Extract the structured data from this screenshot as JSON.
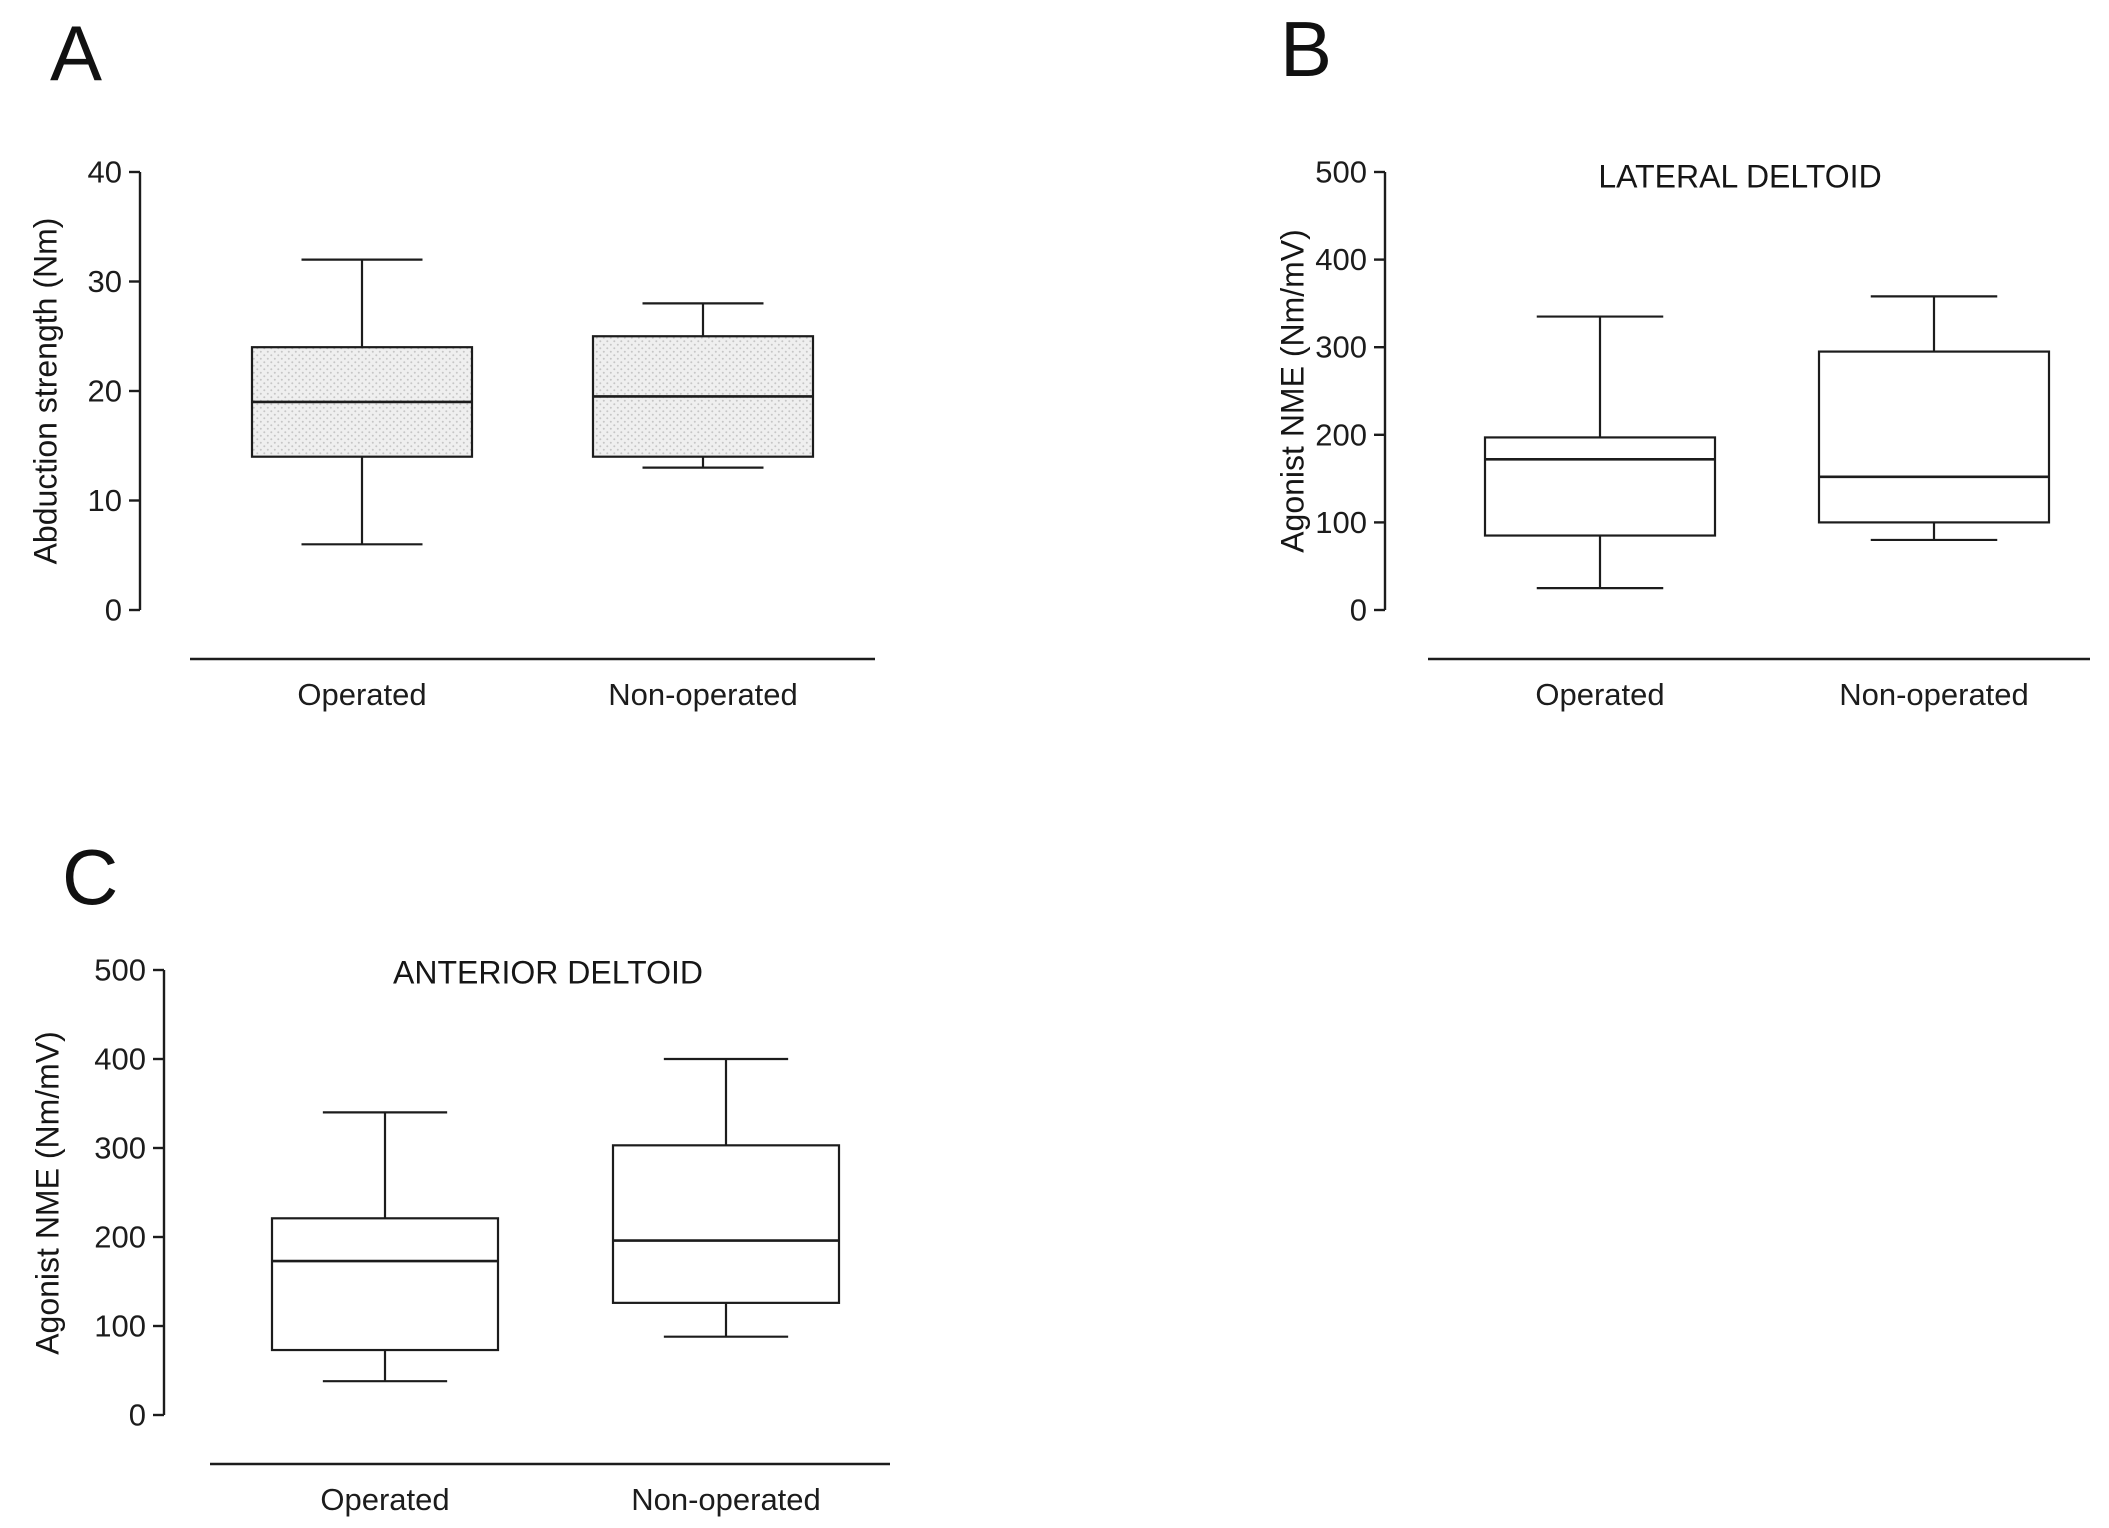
{
  "figure": {
    "panels": [
      {
        "label": "A"
      },
      {
        "label": "B"
      },
      {
        "label": "C"
      }
    ]
  },
  "chart_data": [
    {
      "type": "boxplot",
      "panel_label": "A",
      "title": "",
      "ylabel": "Abduction strength (Nm)",
      "xlabel": "",
      "ylim": [
        0,
        40
      ],
      "yticks": [
        0,
        10,
        20,
        30,
        40
      ],
      "categories": [
        "Operated",
        "Non-operated"
      ],
      "box_fill": "stipple",
      "grid": false,
      "legend": "none",
      "series": [
        {
          "name": "Operated",
          "whisker_low": 6,
          "q1": 14,
          "median": 19,
          "q3": 24,
          "whisker_high": 32
        },
        {
          "name": "Non-operated",
          "whisker_low": 13,
          "q1": 14,
          "median": 19.5,
          "q3": 25,
          "whisker_high": 28
        }
      ]
    },
    {
      "type": "boxplot",
      "panel_label": "B",
      "title": "LATERAL DELTOID",
      "ylabel": "Agonist NME (Nm/mV)",
      "xlabel": "",
      "ylim": [
        0,
        500
      ],
      "yticks": [
        0,
        100,
        200,
        300,
        400,
        500
      ],
      "categories": [
        "Operated",
        "Non-operated"
      ],
      "box_fill": "white",
      "grid": false,
      "legend": "none",
      "series": [
        {
          "name": "Operated",
          "whisker_low": 25,
          "q1": 85,
          "median": 172,
          "q3": 197,
          "whisker_high": 335
        },
        {
          "name": "Non-operated",
          "whisker_low": 80,
          "q1": 100,
          "median": 152,
          "q3": 295,
          "whisker_high": 358
        }
      ]
    },
    {
      "type": "boxplot",
      "panel_label": "C",
      "title": "ANTERIOR DELTOID",
      "ylabel": "Agonist NME (Nm/mV)",
      "xlabel": "",
      "ylim": [
        0,
        500
      ],
      "yticks": [
        0,
        100,
        200,
        300,
        400,
        500
      ],
      "categories": [
        "Operated",
        "Non-operated"
      ],
      "box_fill": "white",
      "grid": false,
      "legend": "none",
      "series": [
        {
          "name": "Operated",
          "whisker_low": 38,
          "q1": 73,
          "median": 173,
          "q3": 221,
          "whisker_high": 340
        },
        {
          "name": "Non-operated",
          "whisker_low": 88,
          "q1": 126,
          "median": 196,
          "q3": 303,
          "whisker_high": 400
        }
      ]
    }
  ]
}
